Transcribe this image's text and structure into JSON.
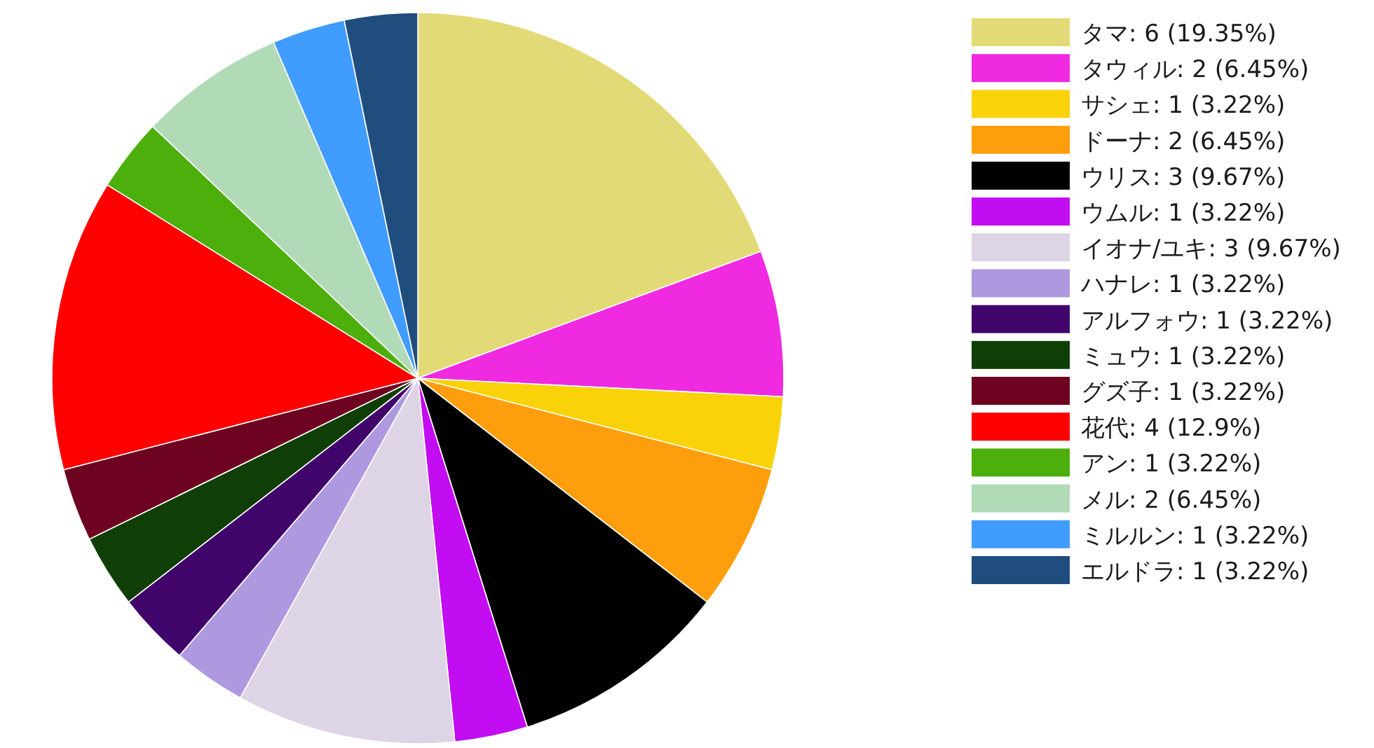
{
  "chart_data": {
    "type": "pie",
    "categories": [
      "タマ",
      "タウィル",
      "サシェ",
      "ドーナ",
      "ウリス",
      "ウムル",
      "イオナ/ユキ",
      "ハナレ",
      "アルフォウ",
      "ミュウ",
      "グズ子",
      "花代",
      "アン",
      "メル",
      "ミルルン",
      "エルドラ"
    ],
    "values": [
      6,
      2,
      1,
      2,
      3,
      1,
      3,
      1,
      1,
      1,
      1,
      4,
      1,
      2,
      1,
      1
    ],
    "value_labels": [
      "6 (19.35%)",
      "2 (6.45%)",
      "1 (3.22%)",
      "2 (6.45%)",
      "3 (9.67%)",
      "1 (3.22%)",
      "3 (9.67%)",
      "1 (3.22%)",
      "1 (3.22%)",
      "1 (3.22%)",
      "1 (3.22%)",
      "4 (12.9%)",
      "1 (3.22%)",
      "2 (6.45%)",
      "1 (3.22%)",
      "1 (3.22%)"
    ],
    "colors": [
      "#e2da76",
      "#f02ae0",
      "#f9d20a",
      "#ff9e0c",
      "#000000",
      "#c20cf2",
      "#ddd4e5",
      "#ae99e0",
      "#41046a",
      "#0f3f07",
      "#6d0221",
      "#ff0000",
      "#4daf0b",
      "#b1dbb7",
      "#419cff",
      "#1f4d7e"
    ],
    "legend": "right"
  }
}
